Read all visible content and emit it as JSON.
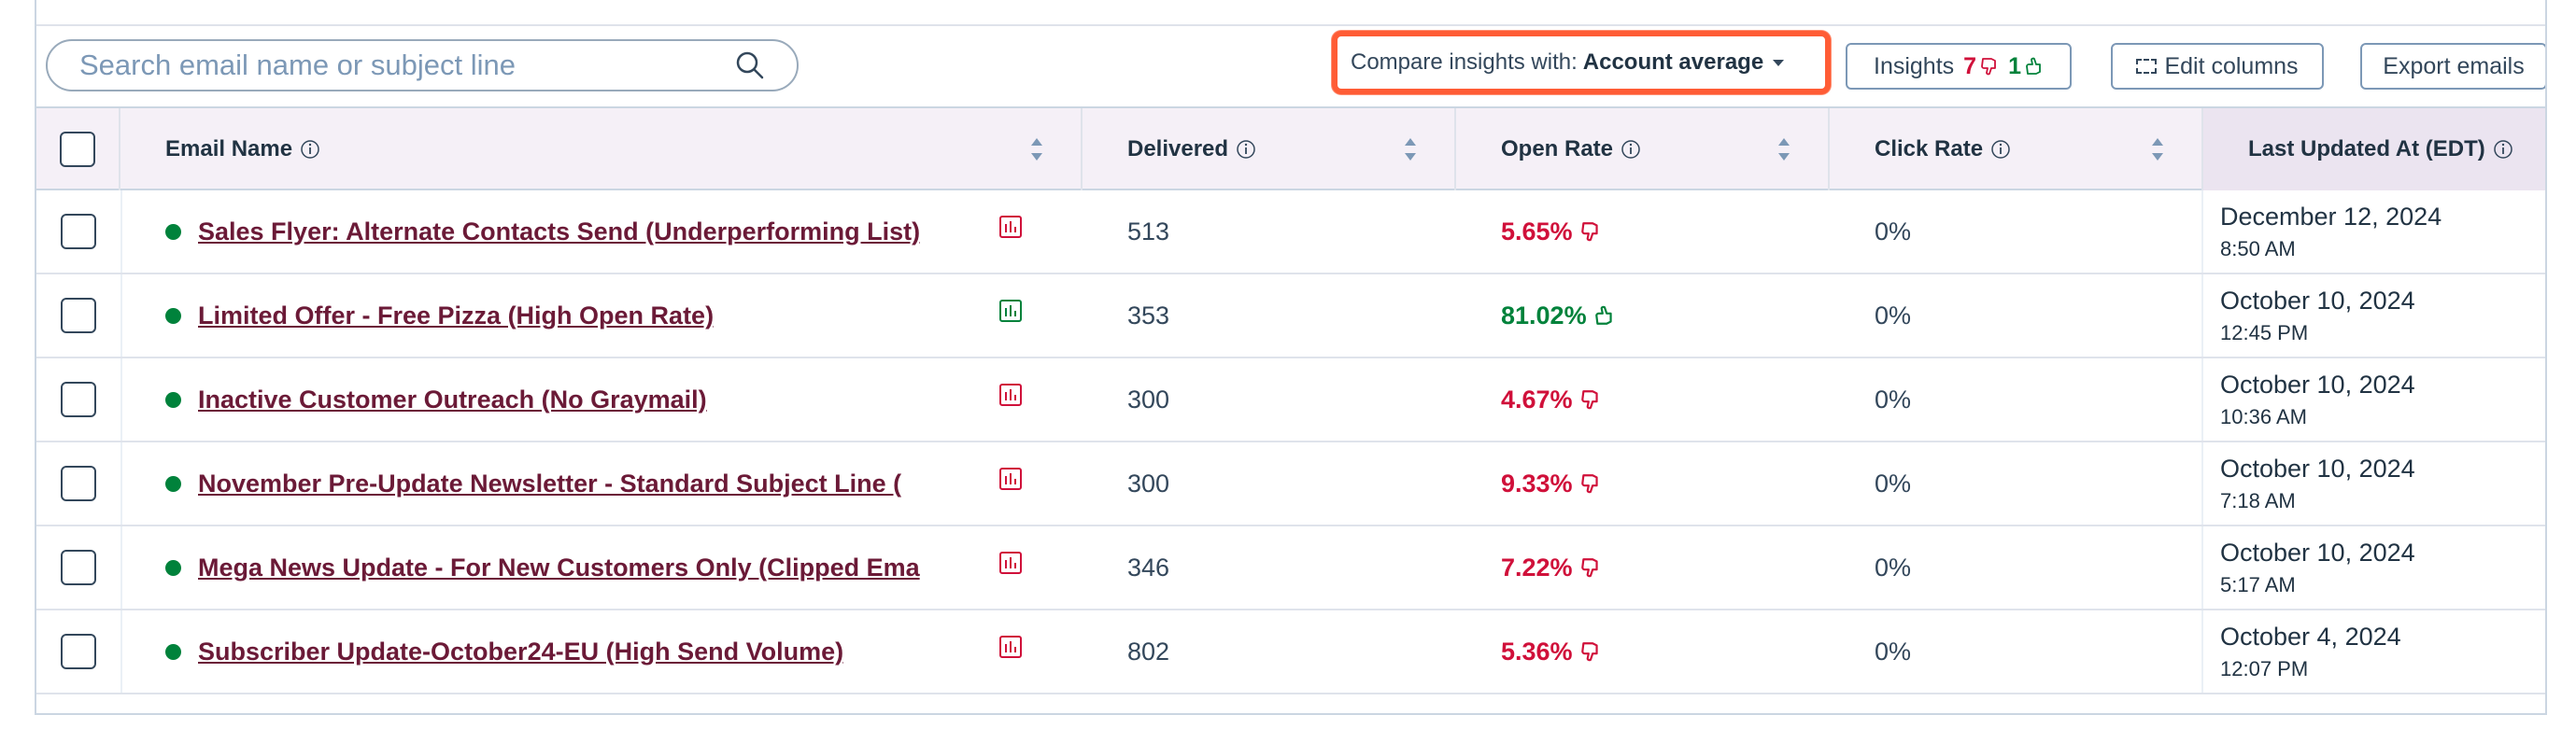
{
  "toolbar": {
    "search_placeholder": "Search email name or subject line",
    "compare_label": "Compare insights with:",
    "compare_value": "Account average",
    "insights_label": "Insights",
    "insights_negative": "7",
    "insights_positive": "1",
    "edit_columns_label": "Edit columns",
    "export_label": "Export emails"
  },
  "columns": [
    {
      "label": "Email Name"
    },
    {
      "label": "Delivered"
    },
    {
      "label": "Open Rate"
    },
    {
      "label": "Click Rate"
    },
    {
      "label": "Last Updated At (EDT)"
    }
  ],
  "rows": [
    {
      "name": "Sales Flyer: Alternate Contacts Send (Underperforming List)",
      "chart_status": "negative",
      "delivered": "513",
      "open_rate": "5.65%",
      "open_trend": "negative",
      "click_rate": "0%",
      "date": "December 12, 2024",
      "time": "8:50 AM"
    },
    {
      "name": "Limited Offer - Free Pizza (High Open Rate)",
      "chart_status": "positive",
      "delivered": "353",
      "open_rate": "81.02%",
      "open_trend": "positive",
      "click_rate": "0%",
      "date": "October 10, 2024",
      "time": "12:45 PM"
    },
    {
      "name": "Inactive Customer Outreach (No Graymail)",
      "chart_status": "negative",
      "delivered": "300",
      "open_rate": "4.67%",
      "open_trend": "negative",
      "click_rate": "0%",
      "date": "October 10, 2024",
      "time": "10:36 AM"
    },
    {
      "name": "November Pre-Update Newsletter - Standard Subject Line (",
      "chart_status": "negative",
      "delivered": "300",
      "open_rate": "9.33%",
      "open_trend": "negative",
      "click_rate": "0%",
      "date": "October 10, 2024",
      "time": "7:18 AM"
    },
    {
      "name": "Mega News Update - For New Customers Only (Clipped Ema",
      "chart_status": "negative",
      "delivered": "346",
      "open_rate": "7.22%",
      "open_trend": "negative",
      "click_rate": "0%",
      "date": "October 10, 2024",
      "time": "5:17 AM"
    },
    {
      "name": "Subscriber Update-October24-EU (High Send Volume)",
      "chart_status": "negative",
      "delivered": "802",
      "open_rate": "5.36%",
      "open_trend": "negative",
      "click_rate": "0%",
      "date": "October 4, 2024",
      "time": "12:07 PM"
    }
  ],
  "colors": {
    "negative": "#d0103a",
    "positive": "#00823b",
    "highlight": "#ff5c35",
    "link": "#6b1a37"
  }
}
